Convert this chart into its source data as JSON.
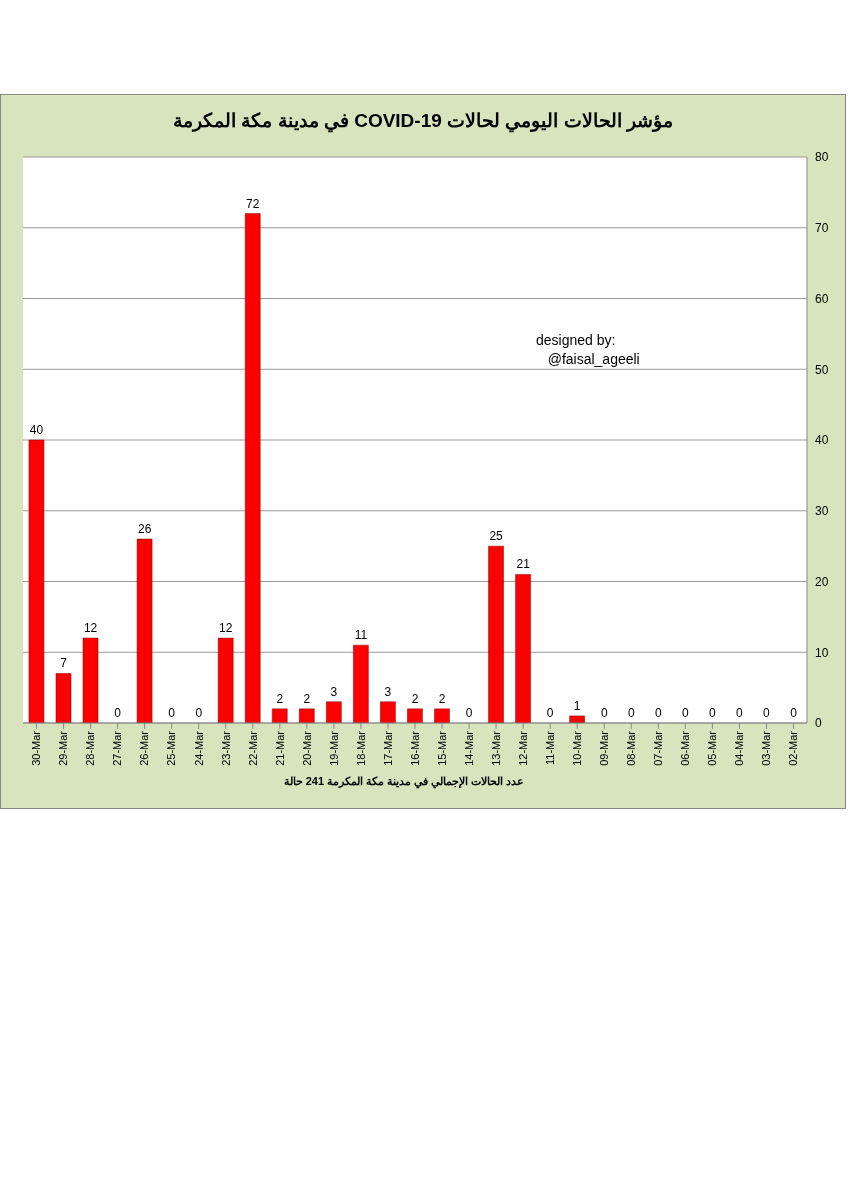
{
  "chart_data": {
    "type": "bar",
    "title": "مؤشر الحالات اليومي لحالات  COVID-19 في مدينة مكة المكرمة",
    "xlabel": "عدد الحالات الإجمالي في مدينة مكة المكرمة  241 حالة",
    "annotations": [
      "designed by:\n   @faisal_ageeli"
    ],
    "categories": [
      "30-Mar",
      "29-Mar",
      "28-Mar",
      "27-Mar",
      "26-Mar",
      "25-Mar",
      "24-Mar",
      "23-Mar",
      "22-Mar",
      "21-Mar",
      "20-Mar",
      "19-Mar",
      "18-Mar",
      "17-Mar",
      "16-Mar",
      "15-Mar",
      "14-Mar",
      "13-Mar",
      "12-Mar",
      "11-Mar",
      "10-Mar",
      "09-Mar",
      "08-Mar",
      "07-Mar",
      "06-Mar",
      "05-Mar",
      "04-Mar",
      "03-Mar",
      "02-Mar"
    ],
    "values": [
      40,
      7,
      12,
      0,
      26,
      0,
      0,
      12,
      72,
      2,
      2,
      3,
      11,
      3,
      2,
      2,
      0,
      25,
      21,
      0,
      1,
      0,
      0,
      0,
      0,
      0,
      0,
      0,
      0
    ],
    "color": "#ff0000",
    "ylim": [
      0,
      80
    ],
    "yticks": [
      0,
      10,
      20,
      30,
      40,
      50,
      60,
      70,
      80
    ],
    "grid": "y",
    "data_labels": true
  }
}
